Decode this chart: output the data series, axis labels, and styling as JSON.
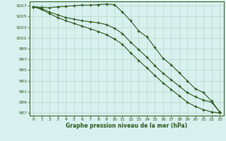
{
  "xlabel": "Graphe pression niveau de la mer (hPa)",
  "ylim": [
    986.5,
    1007.8
  ],
  "xlim": [
    -0.5,
    23.5
  ],
  "yticks": [
    987,
    989,
    991,
    993,
    995,
    997,
    999,
    1001,
    1003,
    1005,
    1007
  ],
  "xticks": [
    0,
    1,
    2,
    3,
    4,
    5,
    6,
    7,
    8,
    9,
    10,
    11,
    12,
    13,
    14,
    15,
    16,
    17,
    18,
    19,
    20,
    21,
    22,
    23
  ],
  "bg_color": "#d8f0ee",
  "grid_color": "#b8d8cc",
  "line_color": "#2d5a1e",
  "line1": [
    1006.8,
    1006.7,
    1006.6,
    1006.8,
    1006.9,
    1007.0,
    1007.1,
    1007.1,
    1007.2,
    1007.3,
    1007.2,
    1005.8,
    1004.2,
    1002.3,
    1001.2,
    999.2,
    997.2,
    996.0,
    994.5,
    993.0,
    991.5,
    990.8,
    989.2,
    987.2
  ],
  "line2": [
    1006.8,
    1006.5,
    1005.8,
    1005.3,
    1004.8,
    1004.5,
    1004.2,
    1004.0,
    1003.8,
    1003.5,
    1002.8,
    1001.8,
    1000.2,
    998.8,
    997.4,
    995.8,
    994.4,
    993.2,
    992.0,
    990.8,
    990.0,
    989.4,
    989.0,
    987.2
  ],
  "line3": [
    1006.8,
    1006.3,
    1005.5,
    1004.8,
    1004.2,
    1003.7,
    1003.2,
    1002.7,
    1002.2,
    1001.6,
    1000.8,
    999.8,
    998.2,
    996.8,
    995.4,
    994.0,
    992.6,
    991.4,
    990.2,
    989.0,
    988.2,
    987.6,
    987.2,
    987.0
  ]
}
